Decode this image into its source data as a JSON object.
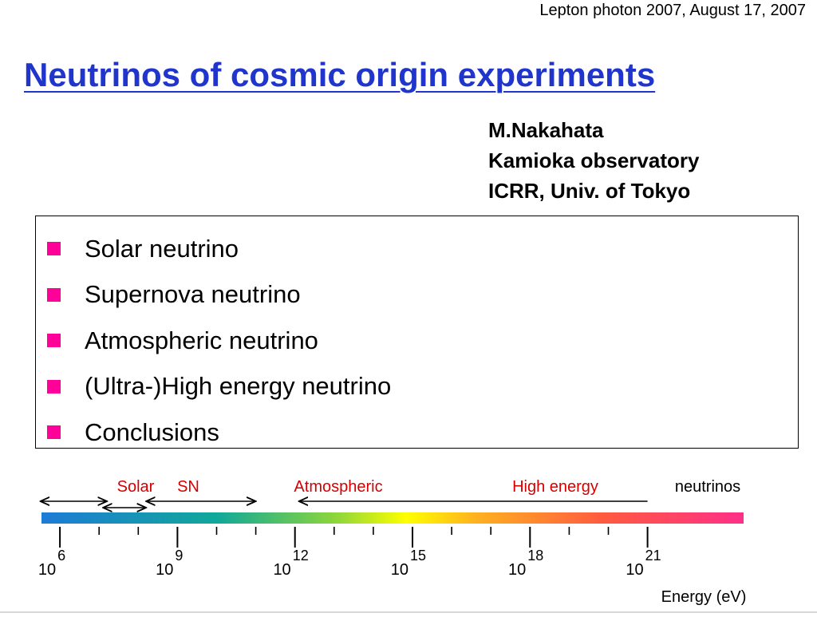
{
  "header": {
    "conference": "Lepton photon 2007, August 17, 2007",
    "title": "Neutrinos of cosmic origin experiments"
  },
  "author": {
    "name": "M.Nakahata",
    "affiliation1": "Kamioka observatory",
    "affiliation2": "ICRR, Univ. of Tokyo"
  },
  "outline": {
    "bullet_color": "#ff0099",
    "items": [
      {
        "label": "Solar neutrino"
      },
      {
        "label": "Supernova neutrino"
      },
      {
        "label": "Atmospheric neutrino"
      },
      {
        "label": "(Ultra-)High energy neutrino"
      },
      {
        "label": "Conclusions"
      }
    ]
  },
  "colors": {
    "title": "#1f35cc",
    "category_label": "#d60000"
  },
  "chart_data": {
    "type": "range-bar",
    "xlabel": "Energy (eV)",
    "scale": "log10",
    "xlim_exponent": [
      5,
      23
    ],
    "major_exponents": [
      6,
      9,
      12,
      15,
      18,
      21
    ],
    "tick_base": "10",
    "minor_step": 1,
    "ranges": [
      {
        "name": "Solar",
        "from_exp": 5.5,
        "to_exp": 7.2,
        "color": "#d60000"
      },
      {
        "name": "SN",
        "from_exp": 7.1,
        "to_exp": 8.2,
        "color": "#d60000"
      },
      {
        "name": "Atmospheric",
        "from_exp": 8.2,
        "to_exp": 11.0,
        "color": "#d60000"
      },
      {
        "name": "High energy",
        "from_exp": 12.1,
        "to_exp": 21.0,
        "color": "#d60000"
      }
    ],
    "trailing_label": "neutrinos"
  }
}
